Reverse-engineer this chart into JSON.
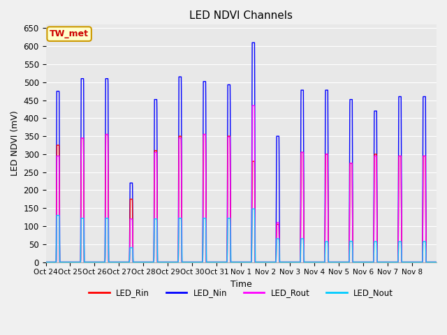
{
  "title": "LED NDVI Channels",
  "xlabel": "Time",
  "ylabel": "LED NDVI (mV)",
  "ylim": [
    0,
    660
  ],
  "yticks": [
    0,
    50,
    100,
    150,
    200,
    250,
    300,
    350,
    400,
    450,
    500,
    550,
    600,
    650
  ],
  "annotation_text": "TW_met",
  "annotation_bbox": {
    "facecolor": "#ffffcc",
    "edgecolor": "#cc9900",
    "boxstyle": "round,pad=0.3"
  },
  "annotation_color": "#cc0000",
  "colors": {
    "LED_Rin": "#ff0000",
    "LED_Nin": "#0000ff",
    "LED_Rout": "#ff00ff",
    "LED_Nout": "#00ccff"
  },
  "legend_labels": [
    "LED_Rin",
    "LED_Nin",
    "LED_Rout",
    "LED_Nout"
  ],
  "background_color": "#e8e8e8",
  "grid_color": "#ffffff",
  "xtick_labels": [
    "Oct 24",
    "Oct 25",
    "Oct 26",
    "Oct 27",
    "Oct 28",
    "Oct 29",
    "Oct 30",
    "Oct 31",
    "Nov 1",
    "Nov 2",
    "Nov 3",
    "Nov 4",
    "Nov 5",
    "Nov 6",
    "Nov 7",
    "Nov 8"
  ],
  "day_positions": [
    0,
    1,
    2,
    3,
    4,
    5,
    6,
    7,
    8,
    9,
    10,
    11,
    12,
    13,
    14,
    15
  ],
  "peaks": {
    "LED_Nin": [
      475,
      510,
      510,
      220,
      452,
      515,
      502,
      493,
      610,
      350,
      478,
      478,
      452,
      420,
      460,
      460
    ],
    "LED_Rin": [
      325,
      345,
      355,
      175,
      310,
      350,
      355,
      350,
      280,
      105,
      305,
      300,
      275,
      300,
      295,
      295
    ],
    "LED_Rout": [
      295,
      345,
      355,
      120,
      305,
      345,
      355,
      348,
      435,
      110,
      305,
      300,
      275,
      295,
      295,
      295
    ],
    "LED_Nout": [
      130,
      122,
      122,
      40,
      120,
      122,
      122,
      122,
      148,
      65,
      65,
      57,
      58,
      57,
      57,
      57
    ]
  },
  "figsize": [
    6.4,
    4.8
  ],
  "dpi": 100
}
